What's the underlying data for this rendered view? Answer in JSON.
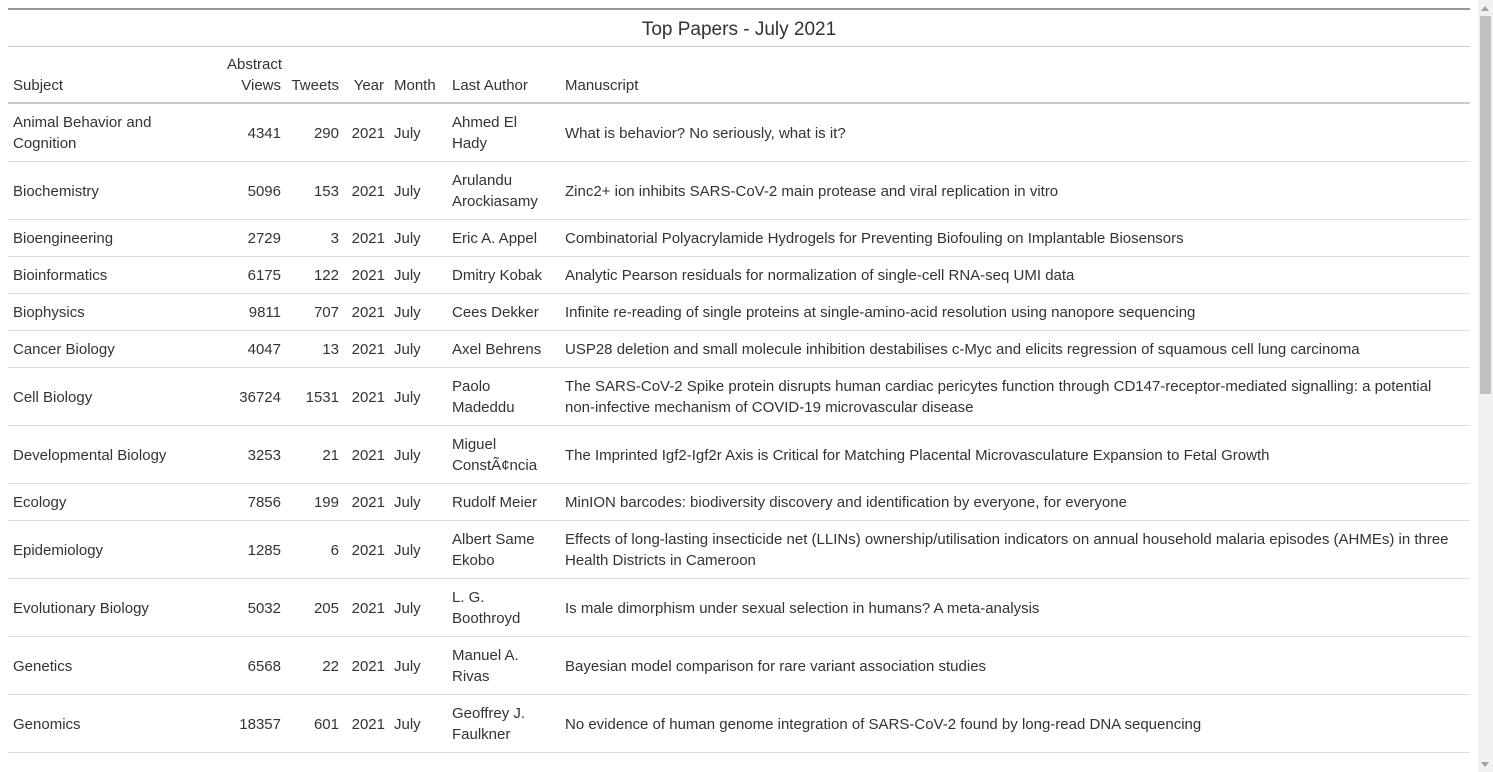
{
  "table": {
    "caption": "Top Papers - July 2021",
    "headers": {
      "subject": "Subject",
      "abstract_views_line1": "Abstract",
      "abstract_views_line2": "Views",
      "tweets": "Tweets",
      "year": "Year",
      "month": "Month",
      "last_author": "Last Author",
      "manuscript": "Manuscript"
    },
    "rows": [
      {
        "subject": "Animal Behavior and Cognition",
        "views": "4341",
        "tweets": "290",
        "year": "2021",
        "month": "July",
        "author": "Ahmed El Hady",
        "manuscript": "What is behavior? No seriously, what is it?"
      },
      {
        "subject": "Biochemistry",
        "views": "5096",
        "tweets": "153",
        "year": "2021",
        "month": "July",
        "author": "Arulandu Arockiasamy",
        "manuscript": "Zinc2+ ion inhibits SARS-CoV-2 main protease and viral replication in vitro"
      },
      {
        "subject": "Bioengineering",
        "views": "2729",
        "tweets": "3",
        "year": "2021",
        "month": "July",
        "author": "Eric A. Appel",
        "manuscript": "Combinatorial Polyacrylamide Hydrogels for Preventing Biofouling on Implantable Biosensors"
      },
      {
        "subject": "Bioinformatics",
        "views": "6175",
        "tweets": "122",
        "year": "2021",
        "month": "July",
        "author": "Dmitry Kobak",
        "manuscript": "Analytic Pearson residuals for normalization of single-cell RNA-seq UMI data"
      },
      {
        "subject": "Biophysics",
        "views": "9811",
        "tweets": "707",
        "year": "2021",
        "month": "July",
        "author": "Cees Dekker",
        "manuscript": "Infinite re-reading of single proteins at single-amino-acid resolution using nanopore sequencing"
      },
      {
        "subject": "Cancer Biology",
        "views": "4047",
        "tweets": "13",
        "year": "2021",
        "month": "July",
        "author": "Axel Behrens",
        "manuscript": "USP28 deletion and small molecule inhibition destabilises c-Myc and elicits regression of squamous cell lung carcinoma"
      },
      {
        "subject": "Cell Biology",
        "views": "36724",
        "tweets": "1531",
        "year": "2021",
        "month": "July",
        "author": "Paolo Madeddu",
        "manuscript": "The SARS-CoV-2 Spike protein disrupts human cardiac pericytes function through CD147-receptor-mediated signalling: a potential non-infective mechanism of COVID-19 microvascular disease"
      },
      {
        "subject": "Developmental Biology",
        "views": "3253",
        "tweets": "21",
        "year": "2021",
        "month": "July",
        "author": "Miguel ConstÃ¢ncia",
        "manuscript": "The Imprinted Igf2-Igf2r Axis is Critical for Matching Placental Microvasculature Expansion to Fetal Growth"
      },
      {
        "subject": "Ecology",
        "views": "7856",
        "tweets": "199",
        "year": "2021",
        "month": "July",
        "author": "Rudolf Meier",
        "manuscript": "MinION barcodes: biodiversity discovery and identification by everyone, for everyone"
      },
      {
        "subject": "Epidemiology",
        "views": "1285",
        "tweets": "6",
        "year": "2021",
        "month": "July",
        "author": "Albert Same Ekobo",
        "manuscript": "Effects of long-lasting insecticide net (LLINs) ownership/utilisation indicators on annual household malaria episodes (AHMEs) in three Health Districts in Cameroon"
      },
      {
        "subject": "Evolutionary Biology",
        "views": "5032",
        "tweets": "205",
        "year": "2021",
        "month": "July",
        "author": "L. G. Boothroyd",
        "manuscript": "Is male dimorphism under sexual selection in humans? A meta-analysis"
      },
      {
        "subject": "Genetics",
        "views": "6568",
        "tweets": "22",
        "year": "2021",
        "month": "July",
        "author": "Manuel A. Rivas",
        "manuscript": "Bayesian model comparison for rare variant association studies"
      },
      {
        "subject": "Genomics",
        "views": "18357",
        "tweets": "601",
        "year": "2021",
        "month": "July",
        "author": "Geoffrey J. Faulkner",
        "manuscript": "No evidence of human genome integration of SARS-CoV-2 found by long-read DNA sequencing"
      }
    ]
  }
}
